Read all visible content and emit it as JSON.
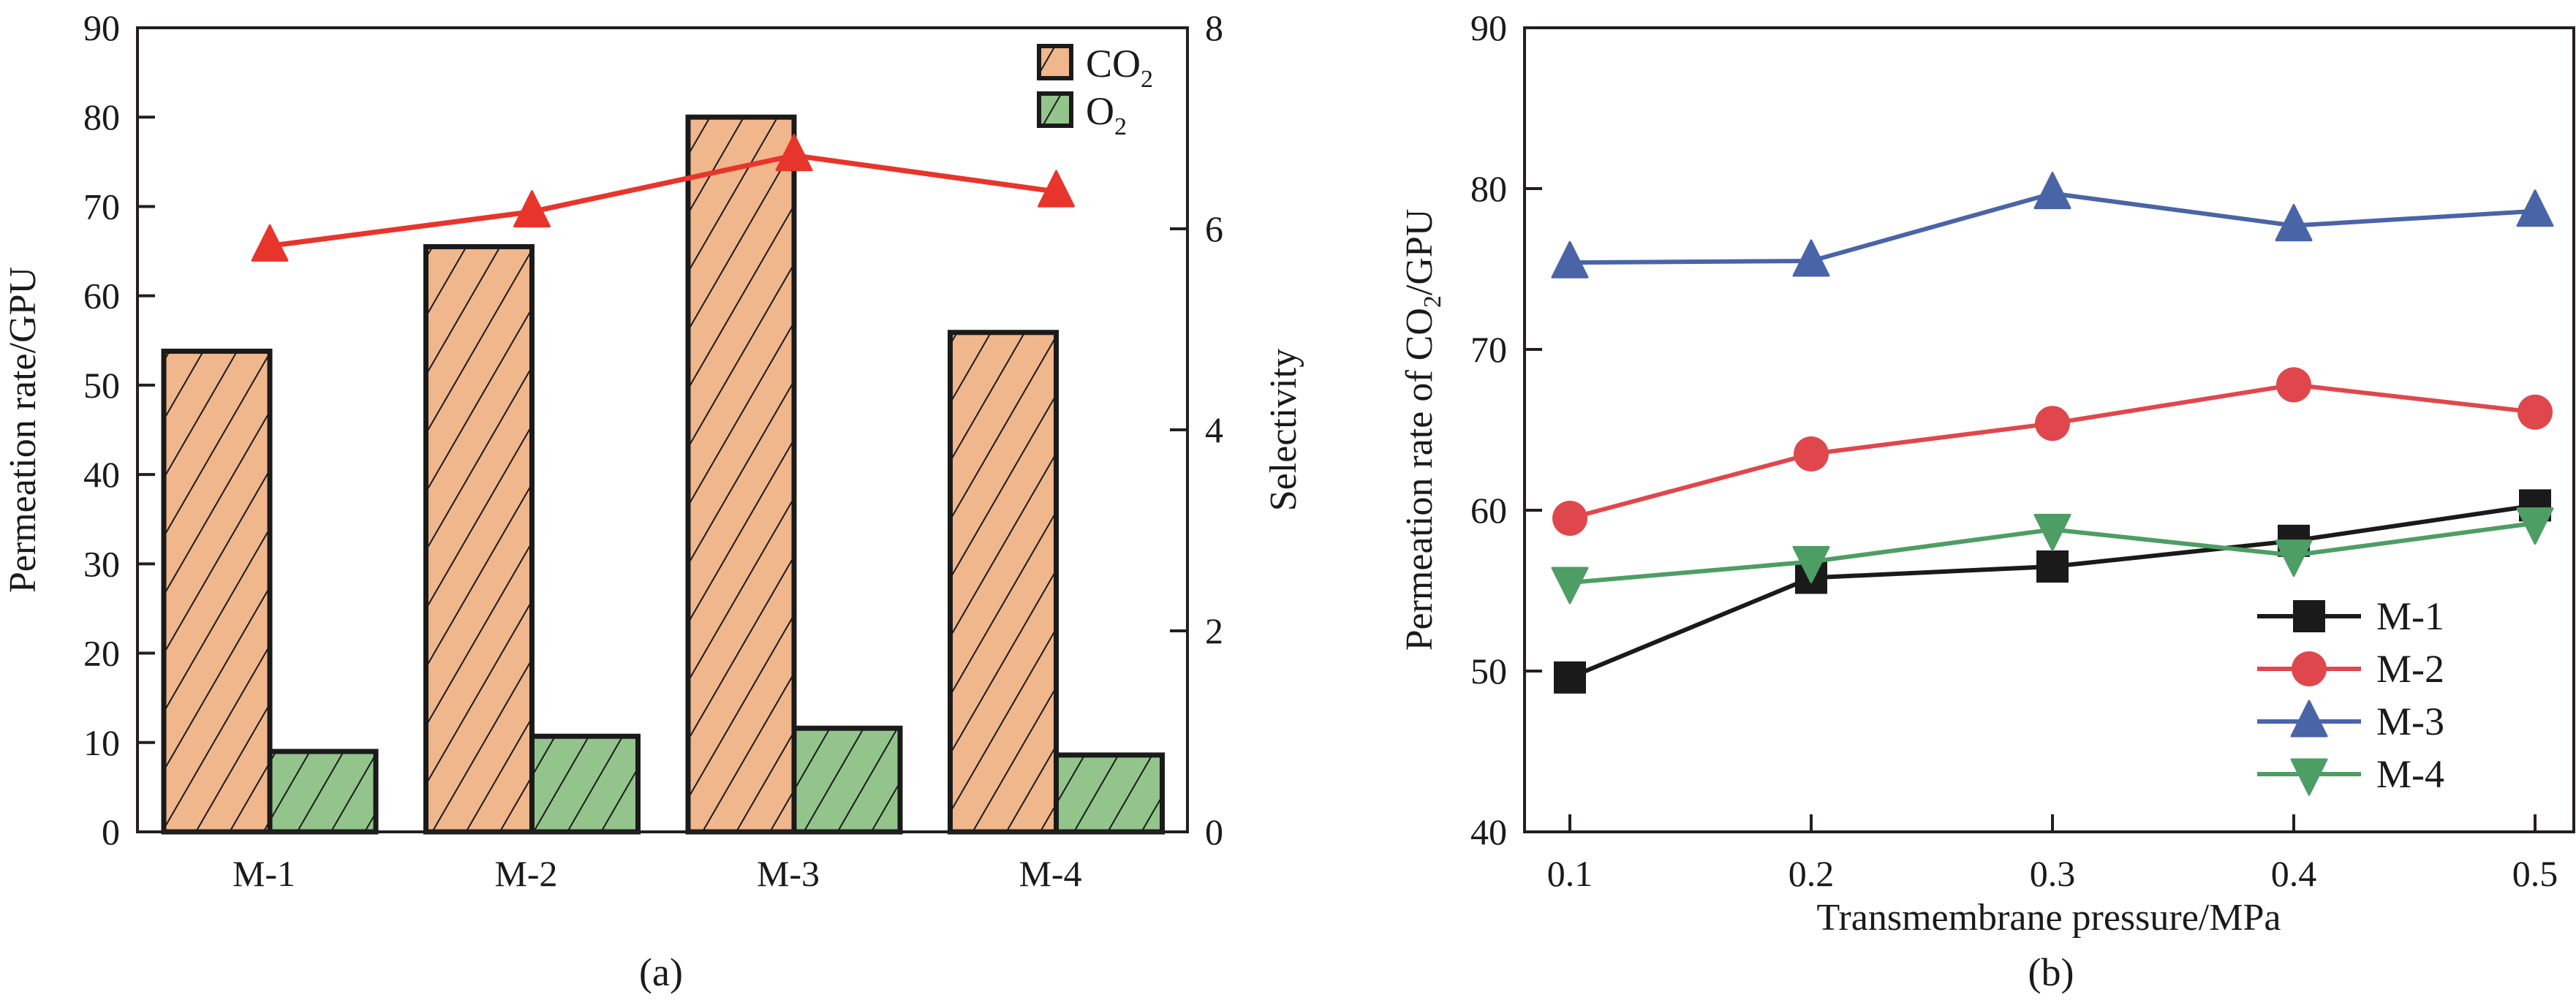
{
  "figure": {
    "caption_a": "(a)",
    "caption_b": "(b)"
  },
  "chart_data": [
    {
      "id": "a",
      "type": "bar",
      "title": "",
      "xlabel": "",
      "ylabel": "Permeation rate/GPU",
      "y2label": "Selectivity",
      "categories": [
        "M-1",
        "M-2",
        "M-3",
        "M-4"
      ],
      "ylim": [
        0,
        90
      ],
      "yticks": [
        0,
        10,
        20,
        30,
        40,
        50,
        60,
        70,
        80,
        90
      ],
      "y2lim": [
        0,
        8
      ],
      "y2ticks": [
        0,
        2,
        4,
        6,
        8
      ],
      "grid": false,
      "legend_position": "top-right",
      "series": [
        {
          "name": "CO2",
          "label_main": "CO",
          "label_sub": "2",
          "kind": "bar",
          "axis": "left",
          "color": "#f0b68c",
          "hatch": "diagonal",
          "values": [
            53.8,
            65.5,
            80.0,
            55.9
          ]
        },
        {
          "name": "O2",
          "label_main": "O",
          "label_sub": "2",
          "kind": "bar",
          "axis": "left",
          "color": "#93c48c",
          "hatch": "diagonal",
          "values": [
            9.0,
            10.7,
            11.6,
            8.6
          ]
        },
        {
          "name": "Selectivity",
          "kind": "line",
          "axis": "right",
          "marker": "triangle-up",
          "color": "#e8352b",
          "values": [
            5.83,
            6.17,
            6.73,
            6.37
          ]
        }
      ]
    },
    {
      "id": "b",
      "type": "line",
      "title": "",
      "xlabel": "Transmembrane pressure/MPa",
      "ylabel_main": "Permeation rate of CO",
      "ylabel_sub": "2",
      "ylabel_tail": "/GPU",
      "ylabel": "Permeation rate of CO2/GPU",
      "x": [
        0.1,
        0.2,
        0.3,
        0.4,
        0.5
      ],
      "xticks": [
        "0.1",
        "0.2",
        "0.3",
        "0.4",
        "0.5"
      ],
      "xlim": [
        0.058,
        0.513
      ],
      "ylim": [
        40,
        90
      ],
      "yticks": [
        40,
        50,
        60,
        70,
        80,
        90
      ],
      "grid": false,
      "legend_position": "bottom-right",
      "series": [
        {
          "name": "M-1",
          "marker": "square",
          "color": "#1a1a1a",
          "values": [
            49.6,
            55.8,
            56.5,
            58.1,
            60.3
          ]
        },
        {
          "name": "M-2",
          "marker": "circle",
          "color": "#e0474c",
          "values": [
            59.5,
            63.5,
            65.4,
            67.8,
            66.1
          ]
        },
        {
          "name": "M-3",
          "marker": "triangle-up",
          "color": "#4a64a8",
          "values": [
            75.4,
            75.5,
            79.7,
            77.7,
            78.6
          ]
        },
        {
          "name": "M-4",
          "marker": "triangle-down",
          "color": "#4d9e64",
          "values": [
            55.5,
            56.8,
            58.8,
            57.2,
            59.2
          ]
        }
      ]
    }
  ]
}
